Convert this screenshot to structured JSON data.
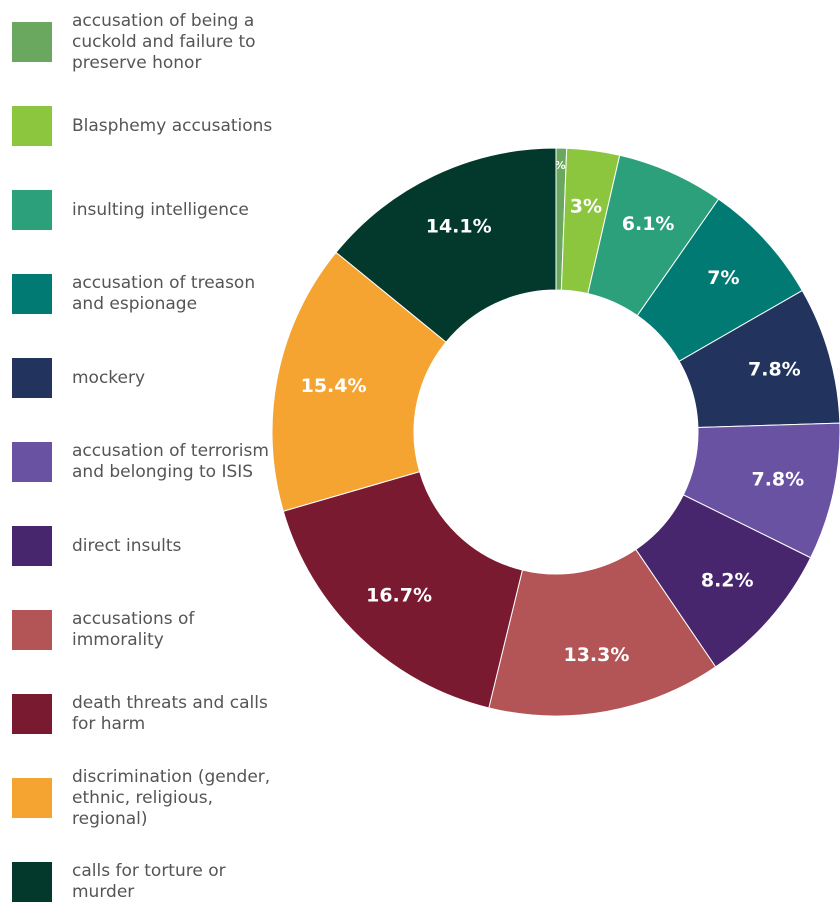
{
  "chart_data": {
    "type": "donut",
    "categories": [
      "accusation of being a cuckold and failure to preserve honor",
      "Blasphemy accusations",
      "insulting intelligence",
      "accusation of treason and espionage",
      "mockery",
      "accusation of terrorism and belonging to ISIS",
      "direct insults",
      "accusations of immorality",
      "death threats and calls for harm",
      "discrimination (gender, ethnic, religious, regional)",
      "calls for torture or murder"
    ],
    "values": [
      0.6,
      3,
      6.1,
      7,
      7.8,
      7.8,
      8.2,
      13.3,
      16.7,
      15.4,
      14.1
    ],
    "value_labels": [
      "0.6%",
      "3%",
      "6.1%",
      "7%",
      "7.8%",
      "7.8%",
      "8.2%",
      "13.3%",
      "16.7%",
      "15.4%",
      "14.1%"
    ],
    "colors": [
      "#6aa85f",
      "#8cc63f",
      "#2ba07a",
      "#007a73",
      "#22345e",
      "#6a52a3",
      "#47266e",
      "#b35456",
      "#7a1a30",
      "#f5a431",
      "#03382c"
    ]
  }
}
